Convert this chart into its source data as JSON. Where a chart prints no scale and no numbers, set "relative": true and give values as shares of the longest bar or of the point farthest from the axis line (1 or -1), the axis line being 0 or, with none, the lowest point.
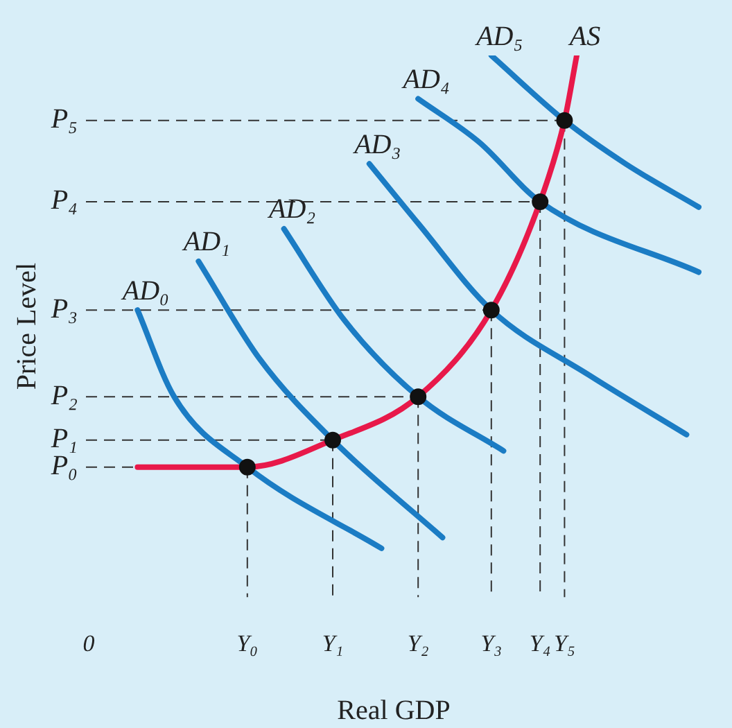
{
  "chart_data": {
    "type": "line",
    "xlabel": "Real GDP",
    "ylabel": "Price Level",
    "relative": true,
    "marker": "none",
    "line_style": "solid",
    "categories": [
      "0",
      null,
      null,
      null,
      null,
      null,
      null,
      null,
      null,
      null,
      null,
      null,
      null,
      "Y₀",
      null,
      null,
      null,
      null,
      null,
      null,
      "Y₁",
      null,
      null,
      null,
      null,
      null,
      null,
      "Y₂",
      null,
      null,
      null,
      null,
      null,
      "Y₃",
      null,
      null,
      null,
      "Y₄",
      null,
      "Y₅",
      null,
      null,
      null,
      null,
      null,
      null,
      null,
      null,
      null,
      null,
      null
    ],
    "ref_lines": [
      {
        "axis": "y",
        "value": 0.24,
        "label": "P₀",
        "line_style": "dashed"
      },
      {
        "axis": "y",
        "value": 0.29,
        "label": "P₁",
        "line_style": "dashed"
      },
      {
        "axis": "y",
        "value": 0.37,
        "label": "P₂",
        "line_style": "dashed"
      },
      {
        "axis": "y",
        "value": 0.53,
        "label": "P₃",
        "line_style": "dashed"
      },
      {
        "axis": "y",
        "value": 0.73,
        "label": "P₄",
        "line_style": "dashed"
      },
      {
        "axis": "y",
        "value": 0.88,
        "label": "P₅",
        "line_style": "dashed"
      }
    ],
    "series": [
      {
        "name": "AD₀",
        "color": "#1b7cc4",
        "values": [
          null,
          null,
          null,
          null,
          0.53,
          null,
          null,
          0.37,
          null,
          null,
          null,
          null,
          null,
          0.24,
          null,
          null,
          null,
          null,
          null,
          null,
          null,
          null,
          null,
          null,
          0.09,
          null,
          null,
          null,
          null,
          null,
          null,
          null,
          null,
          null,
          null,
          null,
          null,
          null,
          null,
          null,
          null,
          null,
          null,
          null,
          null,
          null,
          null,
          null,
          null,
          null,
          null
        ]
      },
      {
        "name": "AD₁",
        "color": "#1b7cc4",
        "values": [
          null,
          null,
          null,
          null,
          null,
          null,
          null,
          null,
          null,
          0.62,
          null,
          null,
          null,
          null,
          0.44,
          null,
          null,
          null,
          null,
          null,
          0.29,
          null,
          null,
          null,
          null,
          null,
          null,
          null,
          null,
          0.11,
          null,
          null,
          null,
          null,
          null,
          null,
          null,
          null,
          null,
          null,
          null,
          null,
          null,
          null,
          null,
          null,
          null,
          null,
          null,
          null,
          null
        ]
      },
      {
        "name": "AD₂",
        "color": "#1b7cc4",
        "values": [
          null,
          null,
          null,
          null,
          null,
          null,
          null,
          null,
          null,
          null,
          null,
          null,
          null,
          null,
          null,
          null,
          0.68,
          null,
          null,
          null,
          null,
          0.51,
          null,
          null,
          null,
          null,
          null,
          0.37,
          null,
          null,
          null,
          null,
          null,
          null,
          0.27,
          null,
          null,
          null,
          null,
          null,
          null,
          null,
          null,
          null,
          null,
          null,
          null,
          null,
          null,
          null,
          null
        ]
      },
      {
        "name": "AD₃",
        "color": "#1b7cc4",
        "values": [
          null,
          null,
          null,
          null,
          null,
          null,
          null,
          null,
          null,
          null,
          null,
          null,
          null,
          null,
          null,
          null,
          null,
          null,
          null,
          null,
          null,
          null,
          null,
          0.8,
          null,
          null,
          null,
          0.69,
          null,
          null,
          null,
          null,
          null,
          0.53,
          null,
          null,
          null,
          null,
          null,
          null,
          null,
          0.41,
          null,
          null,
          null,
          null,
          null,
          null,
          null,
          0.3,
          null
        ]
      },
      {
        "name": "AD₄",
        "color": "#1b7cc4",
        "values": [
          null,
          null,
          null,
          null,
          null,
          null,
          null,
          null,
          null,
          null,
          null,
          null,
          null,
          null,
          null,
          null,
          null,
          null,
          null,
          null,
          null,
          null,
          null,
          null,
          null,
          null,
          null,
          0.92,
          null,
          null,
          null,
          null,
          0.84,
          null,
          null,
          null,
          null,
          0.73,
          null,
          null,
          null,
          null,
          null,
          null,
          null,
          null,
          null,
          null,
          null,
          null,
          0.6
        ]
      },
      {
        "name": "AD₅",
        "color": "#1b7cc4",
        "values": [
          null,
          null,
          null,
          null,
          null,
          null,
          null,
          null,
          null,
          null,
          null,
          null,
          null,
          null,
          null,
          null,
          null,
          null,
          null,
          null,
          null,
          null,
          null,
          null,
          null,
          null,
          null,
          null,
          null,
          null,
          null,
          null,
          null,
          1.0,
          null,
          null,
          null,
          null,
          null,
          0.88,
          null,
          null,
          null,
          null,
          0.8,
          null,
          null,
          null,
          null,
          null,
          0.72
        ]
      },
      {
        "name": "AS",
        "color": "#e8194a",
        "values": [
          null,
          null,
          null,
          null,
          0.24,
          null,
          null,
          null,
          null,
          null,
          null,
          null,
          null,
          0.24,
          null,
          null,
          null,
          null,
          null,
          null,
          0.29,
          null,
          null,
          null,
          null,
          null,
          null,
          0.37,
          null,
          null,
          null,
          null,
          null,
          0.53,
          null,
          null,
          null,
          0.73,
          null,
          0.88,
          1.0,
          null,
          null,
          null,
          null,
          null,
          null,
          null,
          null,
          null,
          null
        ]
      },
      {
        "type": "scatter",
        "marker": "circle",
        "line_style": "dashed",
        "color": "#111111",
        "values": [
          null,
          null,
          null,
          null,
          null,
          null,
          null,
          null,
          null,
          null,
          null,
          null,
          null,
          0.24,
          null,
          null,
          null,
          null,
          null,
          null,
          0.29,
          null,
          null,
          null,
          null,
          null,
          null,
          0.37,
          null,
          null,
          null,
          null,
          null,
          0.53,
          null,
          null,
          null,
          0.73,
          null,
          0.88,
          null,
          null,
          null,
          null,
          null,
          null,
          null,
          null,
          null,
          null,
          null
        ]
      }
    ]
  }
}
